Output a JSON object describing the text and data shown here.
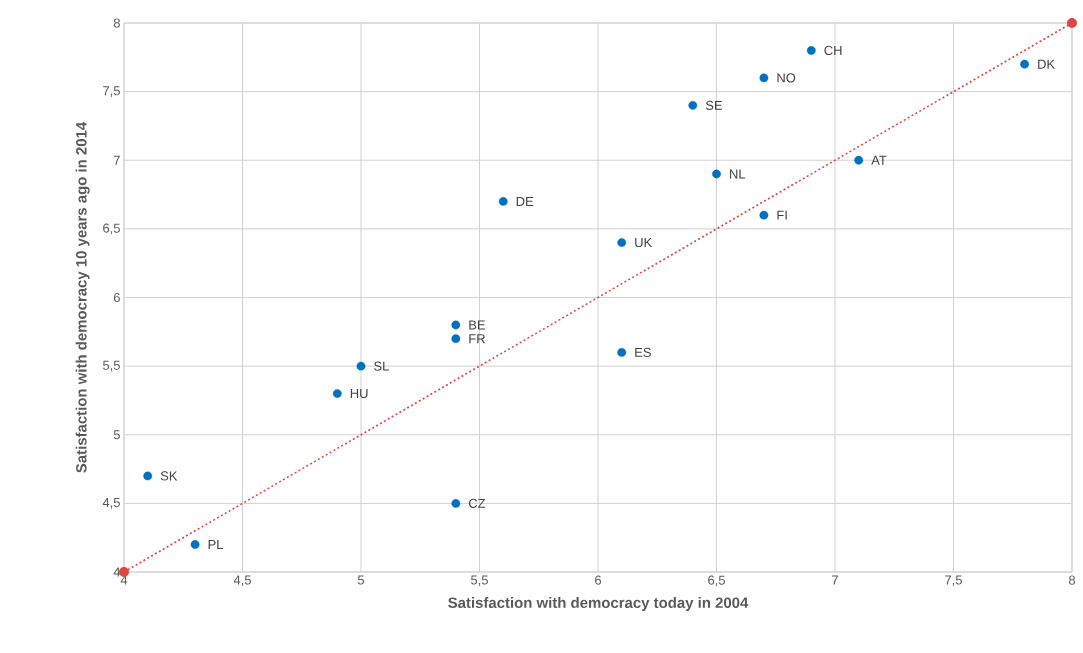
{
  "chart_data": {
    "type": "scatter",
    "xlabel": "Satisfaction with democracy today in 2004",
    "ylabel": "Satisfaction with democracy 10 years ago in 2014",
    "xlim": [
      4,
      8
    ],
    "ylim": [
      4,
      8
    ],
    "xticks": [
      4,
      {
        "value": 4.5,
        "label": "4,5"
      },
      5,
      {
        "value": 5.5,
        "label": "5,5"
      },
      6,
      {
        "value": 6.5,
        "label": "6,5"
      },
      7,
      {
        "value": 7.5,
        "label": "7,5"
      },
      8
    ],
    "yticks": [
      4,
      {
        "value": 4.5,
        "label": "4,5"
      },
      5,
      {
        "value": 5.5,
        "label": "5,5"
      },
      6,
      {
        "value": 6.5,
        "label": "6,5"
      },
      7,
      {
        "value": 7.5,
        "label": "7,5"
      },
      8
    ],
    "grid": true,
    "series": [
      {
        "color": "#0070c0",
        "marker": "circle",
        "x": [
          6.9,
          6.7,
          7.8,
          6.4,
          7.1,
          6.5,
          5.6,
          6.7,
          6.1,
          5.4,
          5.4,
          6.1,
          5.0,
          4.9,
          4.1,
          5.4,
          4.3
        ],
        "values": [
          7.8,
          7.6,
          7.7,
          7.4,
          7.0,
          6.9,
          6.7,
          6.6,
          6.4,
          5.8,
          5.7,
          5.6,
          5.5,
          5.3,
          4.7,
          4.5,
          4.2
        ]
      },
      {
        "type": "line",
        "color": "#e04444",
        "marker": "circle",
        "line_style": "dotted",
        "x": [
          4,
          8
        ],
        "values": [
          4,
          8
        ]
      }
    ],
    "annotations": [
      {
        "text": "CH",
        "x": 6.9,
        "y": 7.8
      },
      {
        "text": "NO",
        "x": 6.7,
        "y": 7.6
      },
      {
        "text": "DK",
        "x": 7.8,
        "y": 7.7
      },
      {
        "text": "SE",
        "x": 6.4,
        "y": 7.4
      },
      {
        "text": "AT",
        "x": 7.1,
        "y": 7.0
      },
      {
        "text": "NL",
        "x": 6.5,
        "y": 6.9
      },
      {
        "text": "DE",
        "x": 5.6,
        "y": 6.7
      },
      {
        "text": "FI",
        "x": 6.7,
        "y": 6.6
      },
      {
        "text": "UK",
        "x": 6.1,
        "y": 6.4
      },
      {
        "text": "BE",
        "x": 5.4,
        "y": 5.8
      },
      {
        "text": "FR",
        "x": 5.4,
        "y": 5.7
      },
      {
        "text": "ES",
        "x": 6.1,
        "y": 5.6
      },
      {
        "text": "SL",
        "x": 5.0,
        "y": 5.5
      },
      {
        "text": "HU",
        "x": 4.9,
        "y": 5.3
      },
      {
        "text": "SK",
        "x": 4.1,
        "y": 4.7
      },
      {
        "text": "CZ",
        "x": 5.4,
        "y": 4.5
      },
      {
        "text": "PL",
        "x": 4.3,
        "y": 4.2
      }
    ]
  }
}
